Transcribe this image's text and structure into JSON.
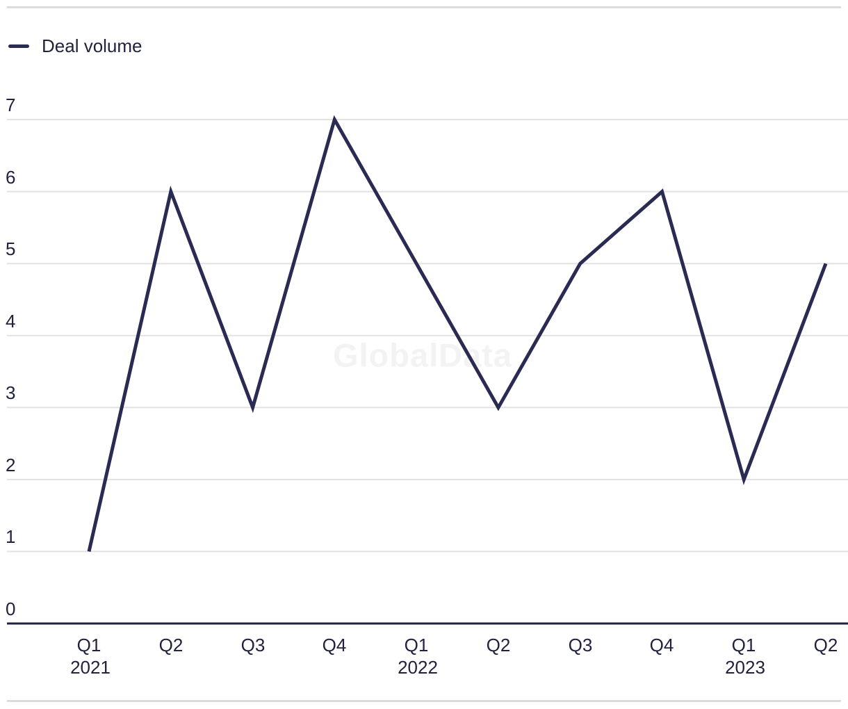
{
  "legend": {
    "label": "Deal volume"
  },
  "watermark": "GlobalData",
  "colors": {
    "line": "#292b52",
    "text": "#20223e",
    "grid": "#e2e2e2",
    "axis": "#20223e",
    "rule": "#dcdcdc",
    "watermark": "#f3f3f3"
  },
  "chart_data": {
    "type": "line",
    "title": "",
    "xlabel": "",
    "ylabel": "",
    "categories": [
      "Q1 2021",
      "Q2 2021",
      "Q3 2021",
      "Q4 2021",
      "Q1 2022",
      "Q2 2022",
      "Q3 2022",
      "Q4 2022",
      "Q1 2023",
      "Q2 2023"
    ],
    "x_tick_labels": [
      "Q1",
      "Q2",
      "Q3",
      "Q4",
      "Q1",
      "Q2",
      "Q3",
      "Q4",
      "Q1",
      "Q2"
    ],
    "x_year_labels": [
      {
        "text": "2021",
        "index": 0
      },
      {
        "text": "2022",
        "index": 4
      },
      {
        "text": "2023",
        "index": 8
      }
    ],
    "series": [
      {
        "name": "Deal volume",
        "values": [
          1,
          6,
          3,
          7,
          5,
          3,
          5,
          6,
          2,
          5
        ]
      }
    ],
    "y_ticks": [
      0,
      1,
      2,
      3,
      4,
      5,
      6,
      7
    ],
    "ylim": [
      0,
      7
    ],
    "grid": "horizontal",
    "legend_position": "top-left",
    "line_color": "#292b52"
  }
}
